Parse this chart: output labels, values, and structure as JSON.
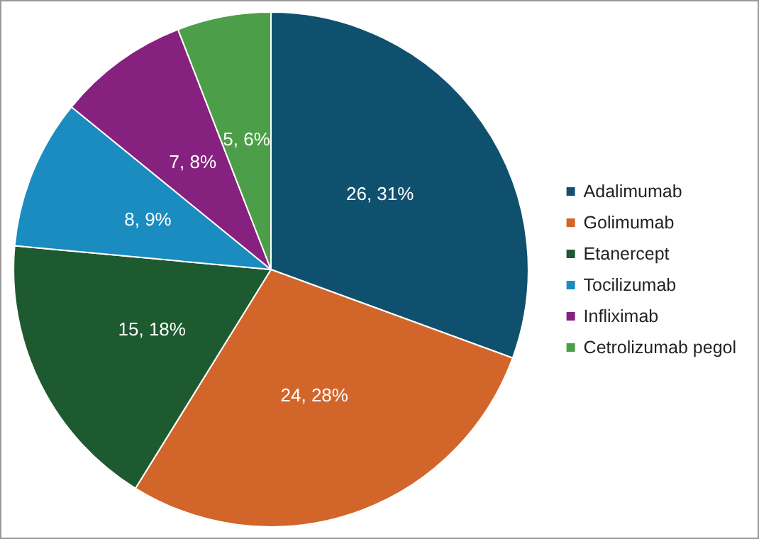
{
  "chart_data": {
    "type": "pie",
    "categories": [
      "Adalimumab",
      "Golimumab",
      "Etanercept",
      "Tocilizumab",
      "Infliximab",
      "Cetrolizumab pegol"
    ],
    "values": [
      26,
      24,
      15,
      8,
      7,
      5
    ],
    "value_labels": [
      "26, 31%",
      "24, 28%",
      "15, 18%",
      "8, 9%",
      "7, 8%",
      "5, 6%"
    ],
    "colors": [
      "#10506f",
      "#d2662a",
      "#1d5a2f",
      "#1a8cc0",
      "#87217f",
      "#4c9e48"
    ],
    "legend": "right"
  }
}
